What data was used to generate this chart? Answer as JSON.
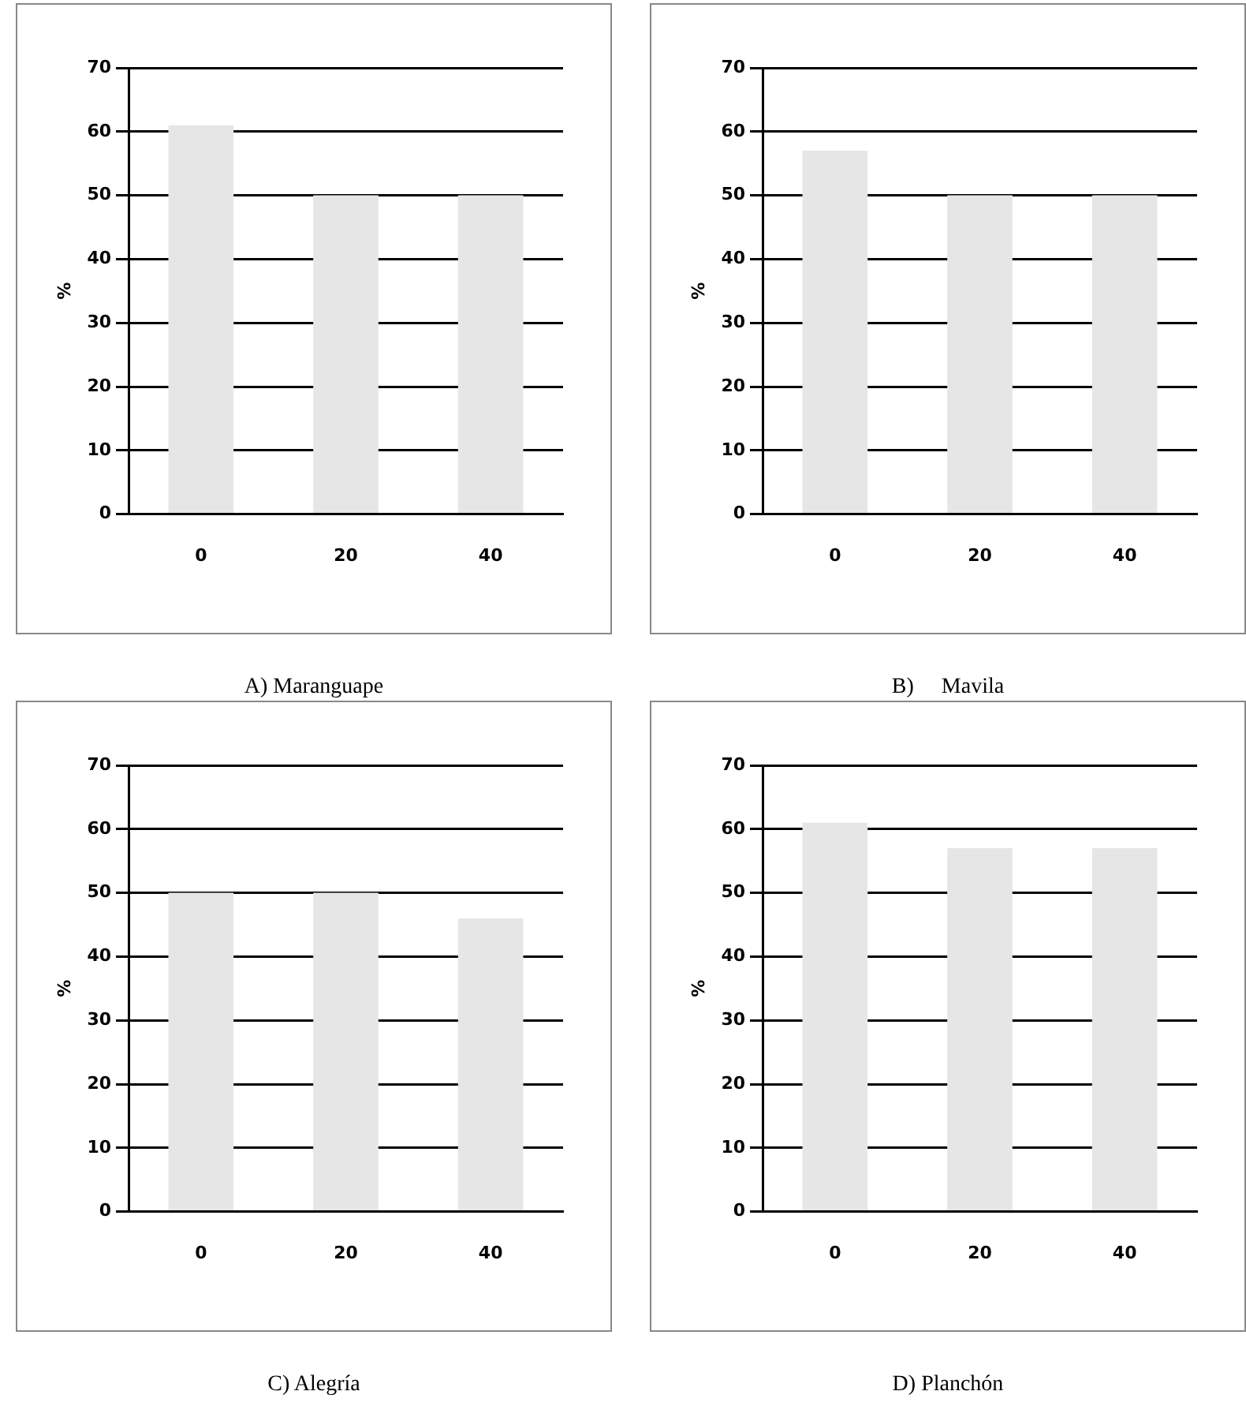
{
  "chart_data": [
    {
      "type": "bar",
      "title": "A) Maranguape",
      "ylabel": "%",
      "categories": [
        "0",
        "20",
        "40"
      ],
      "values": [
        61,
        50,
        50
      ],
      "color": "#e6e6e6",
      "ylim": [
        0,
        70
      ],
      "yticks": [
        0,
        10,
        20,
        30,
        40,
        50,
        60,
        70
      ],
      "grid": "y"
    },
    {
      "type": "bar",
      "title": "B)     Mavila",
      "ylabel": "%",
      "categories": [
        "0",
        "20",
        "40"
      ],
      "values": [
        57,
        50,
        50
      ],
      "color": "#e6e6e6",
      "ylim": [
        0,
        70
      ],
      "yticks": [
        0,
        10,
        20,
        30,
        40,
        50,
        60,
        70
      ],
      "grid": "y"
    },
    {
      "type": "bar",
      "title": "C) Alegría",
      "ylabel": "%",
      "categories": [
        "0",
        "20",
        "40"
      ],
      "values": [
        50,
        50,
        46
      ],
      "color": "#e6e6e6",
      "ylim": [
        0,
        70
      ],
      "yticks": [
        0,
        10,
        20,
        30,
        40,
        50,
        60,
        70
      ],
      "grid": "y"
    },
    {
      "type": "bar",
      "title": "D) Planchón",
      "ylabel": "%",
      "categories": [
        "0",
        "20",
        "40"
      ],
      "values": [
        61,
        57,
        57
      ],
      "color": "#e6e6e6",
      "ylim": [
        0,
        70
      ],
      "yticks": [
        0,
        10,
        20,
        30,
        40,
        50,
        60,
        70
      ],
      "grid": "y"
    }
  ]
}
